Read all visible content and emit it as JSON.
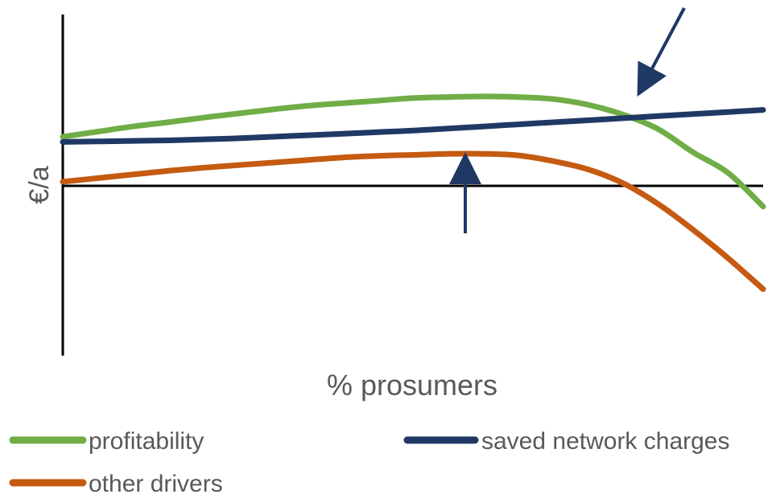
{
  "chart_data": {
    "type": "line",
    "xlabel": "% prosumers",
    "ylabel": "€/a",
    "x_ticks_shown": false,
    "y_ticks_shown": false,
    "grid": false,
    "x_range": [
      0,
      100
    ],
    "y_range": [
      -30,
      28
    ],
    "x": [
      0,
      5,
      10,
      15,
      20,
      25,
      30,
      35,
      40,
      45,
      50,
      55,
      60,
      65,
      70,
      75,
      80,
      85,
      90,
      95,
      100
    ],
    "series": [
      {
        "name": "profitability",
        "color": "#70AD47",
        "values": [
          9.5,
          10.5,
          11.5,
          12.3,
          13.2,
          14.0,
          14.8,
          15.5,
          16.0,
          16.5,
          17.0,
          17.2,
          17.3,
          17.2,
          16.8,
          15.7,
          13.8,
          11.0,
          6.5,
          2.5,
          -4.0
        ]
      },
      {
        "name": "saved network charges",
        "color": "#203864",
        "values": [
          8.5,
          8.6,
          8.7,
          8.8,
          9.0,
          9.2,
          9.5,
          9.8,
          10.1,
          10.4,
          10.7,
          11.1,
          11.5,
          11.9,
          12.3,
          12.7,
          13.1,
          13.5,
          13.9,
          14.3,
          14.7
        ]
      },
      {
        "name": "other drivers",
        "color": "#C55A11",
        "values": [
          0.8,
          1.5,
          2.2,
          2.9,
          3.5,
          4.0,
          4.5,
          5.0,
          5.5,
          5.8,
          6.0,
          6.2,
          6.2,
          5.9,
          4.8,
          3.2,
          0.5,
          -3.5,
          -8.5,
          -14.0,
          -20.0
        ]
      }
    ],
    "annotations": [
      {
        "kind": "arrow",
        "points_to": "profitability / saved network charges intersection",
        "from": "top-right"
      },
      {
        "kind": "arrow",
        "points_to": "peak of other drivers",
        "from": "below"
      }
    ],
    "legend": {
      "placement": "bottom",
      "entries": [
        {
          "label": "profitability",
          "color": "#70AD47"
        },
        {
          "label": "saved network charges",
          "color": "#203864"
        },
        {
          "label": "other drivers",
          "color": "#C55A11"
        }
      ]
    }
  }
}
